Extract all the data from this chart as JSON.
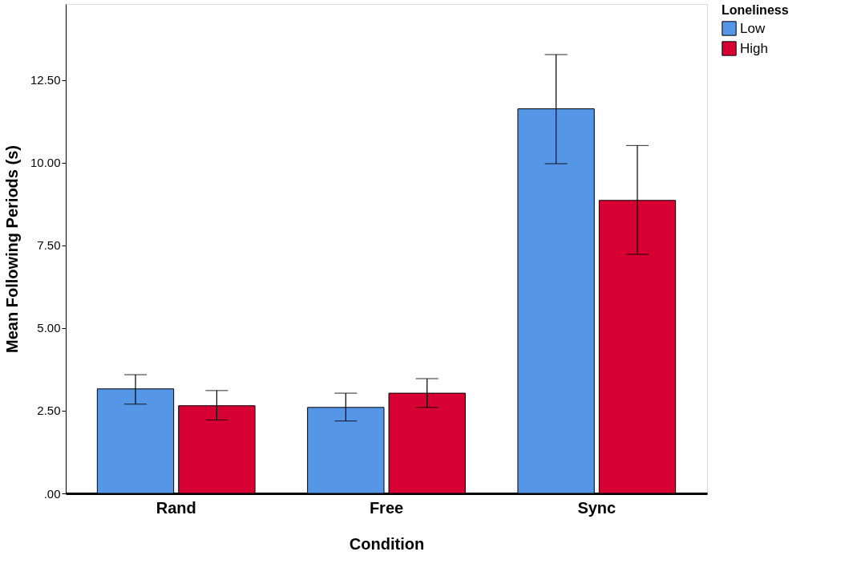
{
  "chart_data": {
    "type": "bar",
    "xlabel": "Condition",
    "ylabel": "Mean Following Periods (s)",
    "legend_title": "Loneliness",
    "categories": [
      "Rand",
      "Free",
      "Sync"
    ],
    "series": [
      {
        "name": "Low",
        "color": "#5596e6",
        "values": [
          3.16,
          2.6,
          11.63
        ],
        "errors": [
          [
            2.7,
            3.59
          ],
          [
            2.19,
            3.03
          ],
          [
            9.97,
            13.27
          ]
        ]
      },
      {
        "name": "High",
        "color": "#d60032",
        "values": [
          2.65,
          3.03,
          8.86
        ],
        "errors": [
          [
            2.22,
            3.11
          ],
          [
            2.6,
            3.47
          ],
          [
            7.23,
            10.52
          ]
        ]
      }
    ],
    "ylim": [
      0,
      14.8
    ],
    "yticks": [
      {
        "value": 0,
        "label": ".00"
      },
      {
        "value": 2.5,
        "label": "2.50"
      },
      {
        "value": 5,
        "label": "5.00"
      },
      {
        "value": 7.5,
        "label": "7.50"
      },
      {
        "value": 10,
        "label": "10.00"
      },
      {
        "value": 12.5,
        "label": "12.50"
      }
    ],
    "grid": false,
    "legend": "top right"
  }
}
